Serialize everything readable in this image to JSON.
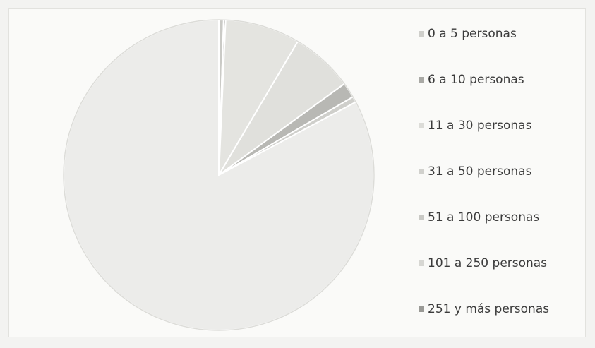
{
  "chart_data": {
    "type": "pie",
    "title": "",
    "legend_position": "right",
    "categories": [
      "0 a 5 personas",
      "6 a 10 personas",
      "11 a 30 personas",
      "31 a 50 personas",
      "51 a 100 personas",
      "101 a 250 personas",
      "251 y más personas"
    ],
    "values": [
      0.5,
      0.2,
      7.8,
      6.5,
      1.6,
      0.6,
      82.8
    ],
    "colors": [
      "#cfcfcb",
      "#a9a9a5",
      "#dcdcd8",
      "#d1d1cd",
      "#c9c9c5",
      "#d7d7d3",
      "#9a9a96"
    ],
    "slice_colors": [
      "#cacac6",
      "#a6a6a2",
      "#e4e4e0",
      "#e0e0dc",
      "#b8b8b4",
      "#cfcfcb",
      "#ececea"
    ]
  }
}
